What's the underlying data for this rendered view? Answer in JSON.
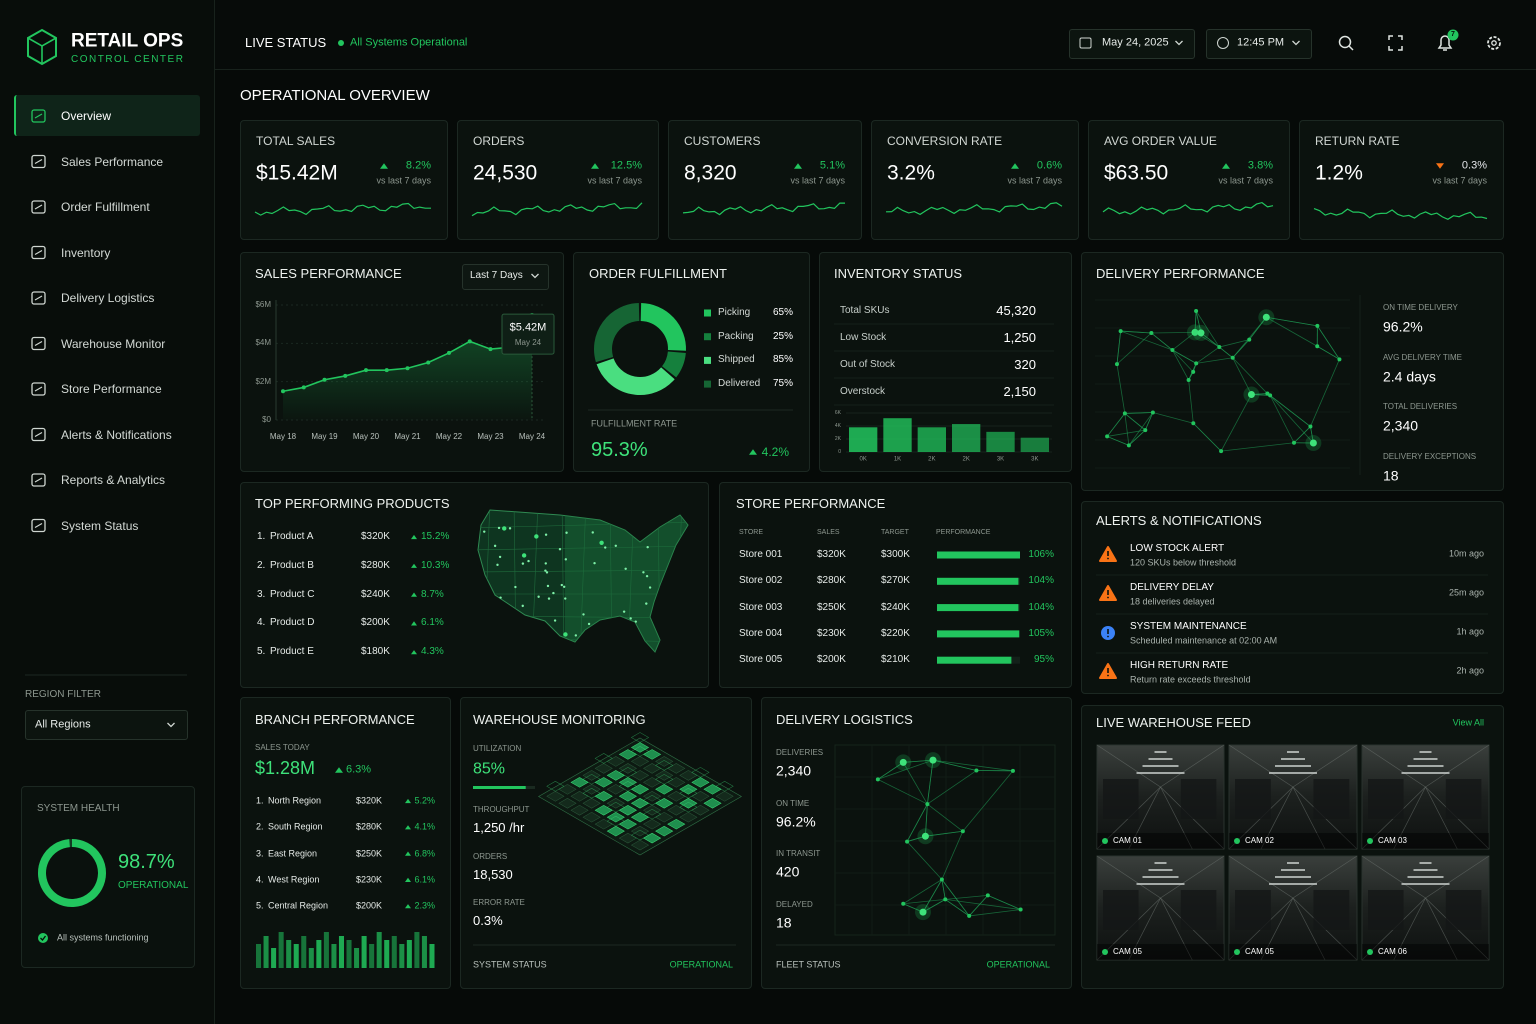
{
  "brand": {
    "title": "RETAIL OPS",
    "subtitle": "CONTROL CENTER"
  },
  "nav": {
    "active": 0,
    "items": [
      "Overview",
      "Sales Performance",
      "Order Fulfillment",
      "Inventory",
      "Delivery Logistics",
      "Warehouse Monitor",
      "Store Performance",
      "Alerts & Notifications",
      "Reports & Analytics",
      "System Status"
    ]
  },
  "region_filter": {
    "label": "REGION FILTER",
    "value": "All Regions"
  },
  "system_health": {
    "title": "SYSTEM HEALTH",
    "value": 98.7,
    "value_label": "98.7%",
    "status": "OPERATIONAL",
    "note": "All systems functioning"
  },
  "header": {
    "live": "LIVE STATUS",
    "status": "All Systems Operational",
    "date": "May 24, 2025",
    "time": "12:45 PM",
    "notifications": 7
  },
  "page_title": "OPERATIONAL OVERVIEW",
  "kpis": [
    {
      "label": "TOTAL SALES",
      "value": "$15.42M",
      "change": "8.2%",
      "direction": "up",
      "note": "vs last 7 days"
    },
    {
      "label": "ORDERS",
      "value": "24,530",
      "change": "12.5%",
      "direction": "up",
      "note": "vs last 7 days"
    },
    {
      "label": "CUSTOMERS",
      "value": "8,320",
      "change": "5.1%",
      "direction": "up",
      "note": "vs last 7 days"
    },
    {
      "label": "CONVERSION RATE",
      "value": "3.2%",
      "change": "0.6%",
      "direction": "up",
      "note": "vs last 7 days"
    },
    {
      "label": "AVG ORDER VALUE",
      "value": "$63.50",
      "change": "3.8%",
      "direction": "up",
      "note": "vs last 7 days"
    },
    {
      "label": "RETURN RATE",
      "value": "1.2%",
      "change": "0.3%",
      "direction": "down",
      "note": "vs last 7 days"
    }
  ],
  "sales_performance": {
    "title": "SALES PERFORMANCE",
    "range": "Last 7 Days",
    "chart_data": {
      "type": "line",
      "color": "#22c55e",
      "categories": [
        "May 18",
        null,
        "May 19",
        null,
        "May 20",
        null,
        "May 21",
        null,
        "May 22",
        null,
        "May 23",
        null,
        "May 24"
      ],
      "values": [
        1.5,
        1.7,
        2.1,
        2.3,
        2.6,
        2.6,
        2.7,
        3.0,
        3.5,
        4.1,
        3.7,
        3.8,
        5.42
      ],
      "value_labels": [
        null,
        null,
        null,
        null,
        null,
        null,
        null,
        null,
        null,
        null,
        null,
        null,
        "$5.42M"
      ],
      "ylim": [
        0,
        6
      ],
      "yticks": [
        {
          "value": 0,
          "label": "$0"
        },
        {
          "value": 2,
          "label": "$2M"
        },
        {
          "value": 4,
          "label": "$4M"
        },
        {
          "value": 6,
          "label": "$6M"
        }
      ],
      "grid": true
    }
  },
  "order_fulfillment": {
    "title": "ORDER FULFILLMENT",
    "items": [
      {
        "name": "Picking",
        "value": 65,
        "value_label": "65%",
        "color": "#22c55e"
      },
      {
        "name": "Packing",
        "value": 25,
        "value_label": "25%",
        "color": "#15803d"
      },
      {
        "name": "Shipped",
        "value": 85,
        "value_label": "85%",
        "color": "#4ade80"
      },
      {
        "name": "Delivered",
        "value": 75,
        "value_label": "75%",
        "color": "#166534"
      }
    ],
    "rate_label": "FULFILLMENT RATE",
    "rate": "95.3%",
    "rate_change": "4.2%"
  },
  "inventory": {
    "title": "INVENTORY STATUS",
    "rows": [
      {
        "label": "Total SKUs",
        "value": "45,320"
      },
      {
        "label": "Low Stock",
        "value": "1,250"
      },
      {
        "label": "Out of Stock",
        "value": "320"
      },
      {
        "label": "Overstock",
        "value": "2,150"
      }
    ],
    "chart_data": {
      "type": "bar",
      "color": "#22c55e",
      "categories": [
        "0K",
        "1K",
        "2K",
        "2K",
        "3K",
        "3K"
      ],
      "values": [
        3.8,
        5.2,
        3.8,
        4.3,
        3.1,
        2.2
      ],
      "ylim": [
        0,
        6
      ],
      "yticks": [
        0,
        {
          "value": 2,
          "label": "2K"
        },
        {
          "value": 4,
          "label": "4K"
        },
        {
          "value": 6,
          "label": "6K"
        }
      ]
    }
  },
  "delivery_performance": {
    "title": "DELIVERY PERFORMANCE",
    "stats": [
      {
        "label": "ON TIME DELIVERY",
        "value": "96.2%"
      },
      {
        "label": "AVG DELIVERY TIME",
        "value": "2.4 days"
      },
      {
        "label": "TOTAL DELIVERIES",
        "value": "2,340"
      },
      {
        "label": "DELIVERY EXCEPTIONS",
        "value": "18"
      }
    ]
  },
  "top_products": {
    "title": "TOP PERFORMING PRODUCTS",
    "rows": [
      {
        "rank": "1.",
        "name": "Product A",
        "value": "$320K",
        "change": "15.2%"
      },
      {
        "rank": "2.",
        "name": "Product B",
        "value": "$280K",
        "change": "10.3%"
      },
      {
        "rank": "3.",
        "name": "Product C",
        "value": "$240K",
        "change": "8.7%"
      },
      {
        "rank": "4.",
        "name": "Product D",
        "value": "$200K",
        "change": "6.1%"
      },
      {
        "rank": "5.",
        "name": "Product E",
        "value": "$180K",
        "change": "4.3%"
      }
    ]
  },
  "store_performance": {
    "title": "STORE PERFORMANCE",
    "columns": [
      "STORE",
      "SALES",
      "TARGET",
      "PERFORMANCE"
    ],
    "rows": [
      {
        "store": "Store 001",
        "sales": "$320K",
        "target": "$300K",
        "performance": 106,
        "performance_label": "106%"
      },
      {
        "store": "Store 002",
        "sales": "$280K",
        "target": "$270K",
        "performance": 104,
        "performance_label": "104%"
      },
      {
        "store": "Store 003",
        "sales": "$250K",
        "target": "$240K",
        "performance": 104,
        "performance_label": "104%"
      },
      {
        "store": "Store 004",
        "sales": "$230K",
        "target": "$220K",
        "performance": 105,
        "performance_label": "105%"
      },
      {
        "store": "Store 005",
        "sales": "$200K",
        "target": "$210K",
        "performance": 95,
        "performance_label": "95%"
      }
    ]
  },
  "alerts": {
    "title": "ALERTS & NOTIFICATIONS",
    "items": [
      {
        "title": "LOW STOCK ALERT",
        "detail": "120 SKUs below threshold",
        "time": "10m ago",
        "level": "warning"
      },
      {
        "title": "DELIVERY DELAY",
        "detail": "18 deliveries delayed",
        "time": "25m ago",
        "level": "warning"
      },
      {
        "title": "SYSTEM MAINTENANCE",
        "detail": "Scheduled maintenance at 02:00 AM",
        "time": "1h ago",
        "level": "info"
      },
      {
        "title": "HIGH RETURN RATE",
        "detail": "Return rate exceeds threshold",
        "time": "2h ago",
        "level": "warning"
      }
    ]
  },
  "branch_performance": {
    "title": "BRANCH PERFORMANCE",
    "sales_label": "SALES TODAY",
    "sales": "$1.28M",
    "change": "6.3%",
    "rows": [
      {
        "rank": "1.",
        "name": "North Region",
        "value": "$320K",
        "change": "5.2%"
      },
      {
        "rank": "2.",
        "name": "South Region",
        "value": "$280K",
        "change": "4.1%"
      },
      {
        "rank": "3.",
        "name": "East Region",
        "value": "$250K",
        "change": "6.8%"
      },
      {
        "rank": "4.",
        "name": "West Region",
        "value": "$230K",
        "change": "6.1%"
      },
      {
        "rank": "5.",
        "name": "Central Region",
        "value": "$200K",
        "change": "2.3%"
      }
    ],
    "chart_data": {
      "type": "bar",
      "color": "#22c55e",
      "values": [
        6,
        8,
        5,
        9,
        7,
        6,
        8,
        5,
        7,
        9,
        6,
        8,
        7,
        5,
        8,
        6,
        9,
        7,
        8,
        6,
        7,
        9,
        8,
        6
      ],
      "ylim": [
        0,
        10
      ]
    }
  },
  "warehouse": {
    "title": "WAREHOUSE MONITORING",
    "utilization": {
      "label": "UTILIZATION",
      "value": 85,
      "value_label": "85%"
    },
    "stats": [
      {
        "label": "THROUGHPUT",
        "value": "1,250 /hr"
      },
      {
        "label": "ORDERS",
        "value": "18,530"
      },
      {
        "label": "ERROR RATE",
        "value": "0.3%"
      }
    ],
    "status_label": "SYSTEM STATUS",
    "status": "OPERATIONAL"
  },
  "logistics": {
    "title": "DELIVERY LOGISTICS",
    "stats": [
      {
        "label": "DELIVERIES",
        "value": "2,340"
      },
      {
        "label": "ON TIME",
        "value": "96.2%"
      },
      {
        "label": "IN TRANSIT",
        "value": "420"
      },
      {
        "label": "DELAYED",
        "value": "18"
      }
    ],
    "status_label": "FLEET STATUS",
    "status": "OPERATIONAL"
  },
  "live_feed": {
    "title": "LIVE WAREHOUSE FEED",
    "link": "View All",
    "cams": [
      "CAM 01",
      "CAM 02",
      "CAM 03",
      "CAM 05",
      "CAM 05",
      "CAM 06"
    ]
  }
}
